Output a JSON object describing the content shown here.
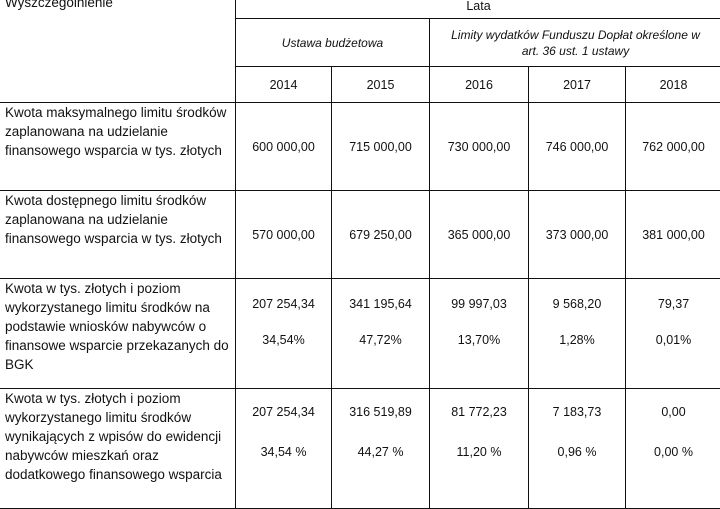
{
  "header": {
    "col_label": "Wyszczególnienie",
    "years_group": "Lata",
    "budget_group": "Ustawa budżetowa",
    "limits_group": "Limity wydatków Funduszu Dopłat określone w art. 36 ust. 1 ustawy",
    "years": [
      "2014",
      "2015",
      "2016",
      "2017",
      "2018"
    ]
  },
  "rows": [
    {
      "label": "Kwota maksymalnego limitu środków zaplanowana na udzielanie finansowego wsparcia w tys. złotych",
      "values": [
        "600 000,00",
        "715 000,00",
        "730 000,00",
        "746 000,00",
        "762 000,00"
      ]
    },
    {
      "label": "Kwota dostępnego limitu środków zaplanowana na udzielanie finansowego wsparcia w tys. złotych",
      "values": [
        "570 000,00",
        "679 250,00",
        "365 000,00",
        "373 000,00",
        "381 000,00"
      ]
    },
    {
      "label": "Kwota w tys. złotych i poziom wykorzystanego limitu środków na podstawie wniosków nabywców o finansowe wsparcie przekazanych do BGK",
      "values": [
        "207 254,34",
        "341 195,64",
        "99 997,03",
        "9 568,20",
        "79,37"
      ],
      "percents": [
        "34,54%",
        "47,72%",
        "13,70%",
        "1,28%",
        "0,01%"
      ]
    },
    {
      "label": "Kwota w tys. złotych i poziom wykorzystanego limitu środków wynikających z wpisów do ewidencji nabywców mieszkań oraz dodatkowego finansowego wsparcia",
      "values": [
        "207 254,34",
        "316 519,89",
        "81 772,23",
        "7 183,73",
        "0,00"
      ],
      "percents": [
        "34,54 %",
        "44,27 %",
        "11,20 %",
        "0,96 %",
        "0,00 %"
      ]
    }
  ]
}
